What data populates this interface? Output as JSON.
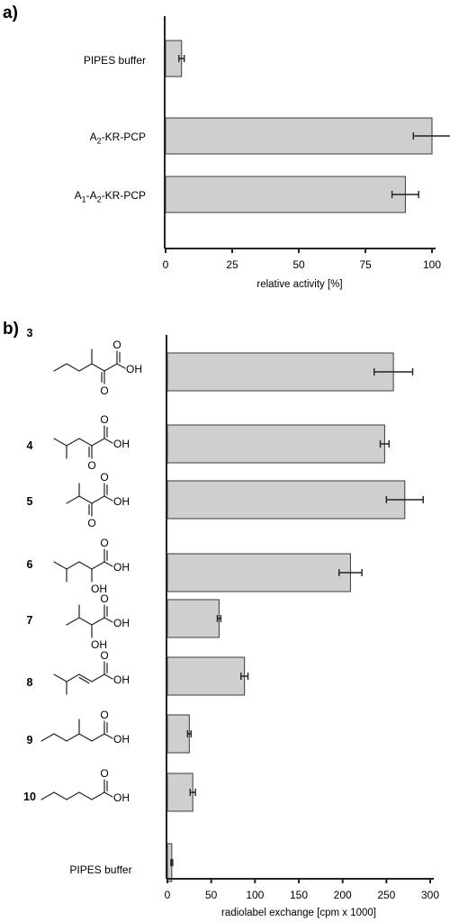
{
  "chart_data": [
    {
      "type": "bar",
      "panel_label": "a)",
      "orientation": "horizontal",
      "categories": [
        {
          "label": "PIPES buffer"
        },
        {
          "label": "A",
          "sub1": "2",
          "rest": "-KR-PCP"
        },
        {
          "label": "A",
          "sub1": "1",
          "mid": "-A",
          "sub2": "2",
          "rest": "-KR-PCP"
        }
      ],
      "values": [
        6,
        100,
        90
      ],
      "errors": [
        1,
        7,
        5
      ],
      "xlabel": "relative activity [%]",
      "xlim": [
        0,
        100
      ],
      "xticks": [
        0,
        25,
        50,
        75,
        100
      ]
    },
    {
      "type": "bar",
      "panel_label": "b)",
      "orientation": "horizontal",
      "categories": [
        {
          "label": "3",
          "structure": "3-methyl-2-oxopentanoic acid"
        },
        {
          "label": "4",
          "structure": "4-methyl-2-oxopentanoic acid"
        },
        {
          "label": "5",
          "structure": "3-methyl-2-oxobutanoic acid"
        },
        {
          "label": "6",
          "structure": "2-hydroxy-4-methylpentanoic acid"
        },
        {
          "label": "7",
          "structure": "2-hydroxy-3-methylbutanoic acid"
        },
        {
          "label": "8",
          "structure": "4-methyl-2-pentenoic acid"
        },
        {
          "label": "9",
          "structure": "3-methylpentanoic acid"
        },
        {
          "label": "10",
          "structure": "pentanoic acid"
        },
        {
          "label": "PIPES buffer"
        }
      ],
      "values": [
        258,
        248,
        271,
        209,
        59,
        88,
        25,
        29,
        5
      ],
      "errors": [
        22,
        5,
        21,
        13,
        2,
        4,
        2,
        3,
        1
      ],
      "xlabel": "radiolabel exchange [cpm x 1000]",
      "xlim": [
        0,
        300
      ],
      "xticks": [
        0,
        50,
        100,
        150,
        200,
        250,
        300
      ]
    }
  ],
  "atom_labels": {
    "oxygen": "O",
    "hydroxyl": "OH"
  }
}
